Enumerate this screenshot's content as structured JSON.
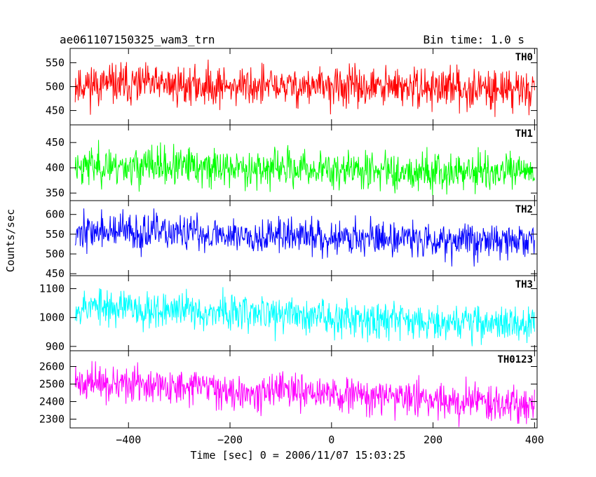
{
  "header": {
    "title": "ae061107150325_wam3_trn",
    "bin_time": "Bin time: 1.0 s"
  },
  "chart_data": {
    "type": "line",
    "xlabel": "Time [sec] 0 = 2006/11/07 15:03:25",
    "ylabel": "Counts/sec",
    "xlim": [
      -515,
      405
    ],
    "x_ticks": [
      -400,
      -200,
      0,
      200,
      400
    ],
    "x_tick_labels": [
      "−400",
      "−200",
      "0",
      "200",
      "400"
    ],
    "x_start": -505,
    "x_end": 400,
    "bin": 1.0,
    "grid": false,
    "panels": [
      {
        "name": "TH0",
        "color": "#ff0000",
        "ylim": [
          420,
          580
        ],
        "yticks": [
          450,
          500,
          550
        ],
        "ytick_labels": [
          "450",
          "500",
          "550"
        ],
        "trend_start": 505,
        "trend_end": 495,
        "noise": 21,
        "seed": 11,
        "sample": [
          {
            "x": -500,
            "y": 505
          },
          {
            "x": -400,
            "y": 502
          },
          {
            "x": -300,
            "y": 500
          },
          {
            "x": -200,
            "y": 499
          },
          {
            "x": -100,
            "y": 498
          },
          {
            "x": 0,
            "y": 497
          },
          {
            "x": 100,
            "y": 497
          },
          {
            "x": 200,
            "y": 496
          },
          {
            "x": 300,
            "y": 496
          },
          {
            "x": 400,
            "y": 495
          }
        ]
      },
      {
        "name": "TH1",
        "color": "#00ff00",
        "ylim": [
          335,
          485
        ],
        "yticks": [
          350,
          400,
          450
        ],
        "ytick_labels": [
          "350",
          "400",
          "450"
        ],
        "trend_start": 405,
        "trend_end": 390,
        "noise": 19,
        "seed": 23,
        "sample": [
          {
            "x": -500,
            "y": 408
          },
          {
            "x": -400,
            "y": 402
          },
          {
            "x": -300,
            "y": 398
          },
          {
            "x": -200,
            "y": 396
          },
          {
            "x": -100,
            "y": 394
          },
          {
            "x": 0,
            "y": 393
          },
          {
            "x": 100,
            "y": 392
          },
          {
            "x": 200,
            "y": 391
          },
          {
            "x": 300,
            "y": 390
          },
          {
            "x": 400,
            "y": 390
          }
        ]
      },
      {
        "name": "TH2",
        "color": "#0000ff",
        "ylim": [
          445,
          635
        ],
        "yticks": [
          450,
          500,
          550,
          600
        ],
        "ytick_labels": [
          "450",
          "500",
          "550",
          "600"
        ],
        "trend_start": 558,
        "trend_end": 532,
        "noise": 23,
        "seed": 37,
        "sample": [
          {
            "x": -500,
            "y": 560
          },
          {
            "x": -400,
            "y": 556
          },
          {
            "x": -300,
            "y": 552
          },
          {
            "x": -200,
            "y": 548
          },
          {
            "x": -100,
            "y": 544
          },
          {
            "x": 0,
            "y": 540
          },
          {
            "x": 100,
            "y": 537
          },
          {
            "x": 200,
            "y": 535
          },
          {
            "x": 300,
            "y": 533
          },
          {
            "x": 400,
            "y": 532
          }
        ]
      },
      {
        "name": "TH3",
        "color": "#00ffff",
        "ylim": [
          885,
          1145
        ],
        "yticks": [
          900,
          1000,
          1100
        ],
        "ytick_labels": [
          "900",
          "1000",
          "1100"
        ],
        "trend_start": 1040,
        "trend_end": 975,
        "noise": 32,
        "seed": 53,
        "sample": [
          {
            "x": -500,
            "y": 1045
          },
          {
            "x": -400,
            "y": 1030
          },
          {
            "x": -300,
            "y": 1015
          },
          {
            "x": -200,
            "y": 1005
          },
          {
            "x": -100,
            "y": 998
          },
          {
            "x": 0,
            "y": 992
          },
          {
            "x": 100,
            "y": 988
          },
          {
            "x": 200,
            "y": 983
          },
          {
            "x": 300,
            "y": 980
          },
          {
            "x": 400,
            "y": 975
          }
        ]
      },
      {
        "name": "TH0123",
        "color": "#ff00ff",
        "ylim": [
          2250,
          2690
        ],
        "yticks": [
          2300,
          2400,
          2500,
          2600
        ],
        "ytick_labels": [
          "2300",
          "2400",
          "2500",
          "2600"
        ],
        "trend_start": 2510,
        "trend_end": 2385,
        "noise": 50,
        "seed": 71,
        "sample": [
          {
            "x": -500,
            "y": 2510
          },
          {
            "x": -400,
            "y": 2480
          },
          {
            "x": -300,
            "y": 2455
          },
          {
            "x": -200,
            "y": 2435
          },
          {
            "x": -100,
            "y": 2420
          },
          {
            "x": 0,
            "y": 2410
          },
          {
            "x": 100,
            "y": 2402
          },
          {
            "x": 200,
            "y": 2395
          },
          {
            "x": 300,
            "y": 2390
          },
          {
            "x": 400,
            "y": 2385
          }
        ]
      }
    ]
  }
}
